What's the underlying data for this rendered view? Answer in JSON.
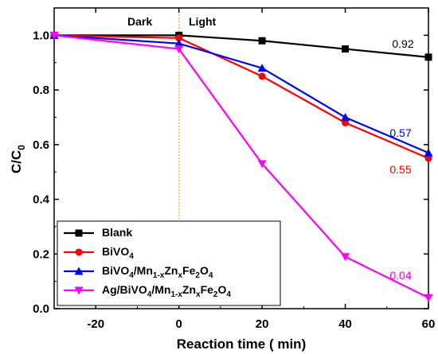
{
  "chart_data": {
    "type": "line",
    "xlabel": "Reaction time ( min)",
    "ylabel": "C/C0",
    "xlim": [
      -30,
      60
    ],
    "ylim": [
      0.0,
      1.1
    ],
    "xticks": [
      -20,
      0,
      20,
      40,
      60
    ],
    "yticks": [
      0.0,
      0.2,
      0.4,
      0.6,
      0.8,
      1.0
    ],
    "x": [
      -30,
      0,
      20,
      40,
      60
    ],
    "annotations": {
      "dark": "Dark",
      "light": "Light"
    },
    "divider_x": 0,
    "series": [
      {
        "name": "Blank",
        "color": "#000000",
        "marker": "square",
        "values": [
          1.0,
          1.0,
          0.98,
          0.95,
          0.92
        ],
        "end_label": "0.92"
      },
      {
        "name": "BiVO4",
        "color": "#ff0000",
        "marker": "circle",
        "values": [
          1.0,
          0.99,
          0.85,
          0.68,
          0.55
        ],
        "end_label": "0.55"
      },
      {
        "name": "BiVO4/Mn1-xZnxFe2O4",
        "color": "#0000ff",
        "marker": "triangle-up",
        "values": [
          1.0,
          0.97,
          0.88,
          0.7,
          0.57
        ],
        "end_label": "0.57"
      },
      {
        "name": "Ag/BiVO4/Mn1-xZnxFe2O4",
        "color": "#ff00ff",
        "marker": "triangle-down",
        "values": [
          1.0,
          0.95,
          0.53,
          0.19,
          0.04
        ],
        "end_label": "0.04"
      }
    ]
  }
}
